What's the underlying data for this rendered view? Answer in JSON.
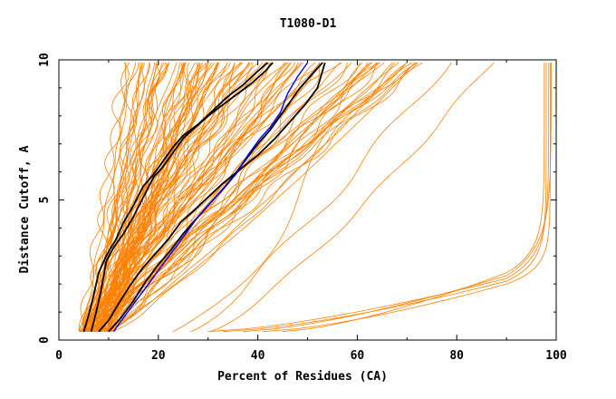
{
  "chart_data": {
    "type": "line",
    "title": "T1080-D1",
    "xlabel": "Percent of Residues (CA)",
    "ylabel": "Distance Cutoff, A",
    "xlim": [
      0,
      100
    ],
    "ylim": [
      0,
      10
    ],
    "xticks": [
      "0",
      "20",
      "40",
      "60",
      "80",
      "100"
    ],
    "yticks": [
      "0",
      "5",
      "10"
    ],
    "grid": false,
    "colors": {
      "models": "#ff8000",
      "highlight_black": "#000000",
      "highlight_blue": "#0000ff",
      "frame": "#000000"
    },
    "series": [
      {
        "role": "highlight_black",
        "x": [
          6.5,
          7.5,
          8.5,
          9.5,
          11.0,
          13.0,
          15.0,
          17.0,
          19.0,
          21.0,
          23.0,
          25.0,
          27.5,
          30.0,
          33.0,
          36.0,
          39.0,
          41.5,
          43.0
        ],
        "y": [
          0.3,
          1.0,
          1.8,
          2.8,
          3.3,
          3.8,
          4.4,
          5.1,
          5.8,
          6.2,
          6.7,
          7.2,
          7.6,
          8.0,
          8.4,
          8.8,
          9.2,
          9.6,
          9.9
        ]
      },
      {
        "role": "highlight_black",
        "x": [
          5.0,
          6.0,
          7.0,
          8.0,
          9.5,
          11.5,
          13.0,
          15.0,
          17.0,
          19.0,
          21.0,
          23.0,
          25.0,
          28.0,
          31.0,
          34.0,
          37.0,
          40.0,
          42.0
        ],
        "y": [
          0.3,
          0.9,
          1.6,
          2.4,
          3.0,
          3.6,
          4.2,
          4.8,
          5.5,
          5.9,
          6.4,
          6.9,
          7.3,
          7.7,
          8.2,
          8.7,
          9.1,
          9.6,
          9.9
        ]
      },
      {
        "role": "highlight_black",
        "x": [
          8.0,
          10.0,
          12.0,
          14.5,
          17.0,
          19.5,
          22.0,
          24.5,
          27.0,
          30.0,
          33.0,
          36.5,
          40.0,
          43.5,
          46.5,
          49.5,
          52.0,
          53.5
        ],
        "y": [
          0.3,
          0.7,
          1.3,
          2.0,
          2.6,
          3.1,
          3.6,
          4.2,
          4.6,
          5.1,
          5.6,
          6.1,
          6.6,
          7.2,
          7.8,
          8.4,
          9.0,
          9.9
        ]
      },
      {
        "role": "highlight_black",
        "x": [
          10.0,
          12.5,
          15.0,
          17.5,
          20.0,
          22.5,
          25.0,
          28.0,
          31.0,
          34.0,
          37.0,
          40.0,
          42.5,
          44.5,
          46.5,
          48.5,
          51.0,
          53.0
        ],
        "y": [
          0.3,
          0.8,
          1.4,
          2.1,
          2.7,
          3.2,
          3.8,
          4.4,
          5.0,
          5.6,
          6.3,
          7.0,
          7.5,
          8.0,
          8.5,
          9.0,
          9.5,
          9.9
        ]
      },
      {
        "role": "highlight_blue",
        "x": [
          11.0,
          13.0,
          15.5,
          18.0,
          20.5,
          23.0,
          25.5,
          28.0,
          30.5,
          33.0,
          35.5,
          38.0,
          40.5,
          42.5,
          44.5,
          46.0,
          48.0,
          50.0
        ],
        "y": [
          0.3,
          0.8,
          1.4,
          2.0,
          2.6,
          3.2,
          3.8,
          4.4,
          4.9,
          5.4,
          5.9,
          6.6,
          7.2,
          7.6,
          8.1,
          8.8,
          9.4,
          9.9
        ]
      }
    ]
  }
}
